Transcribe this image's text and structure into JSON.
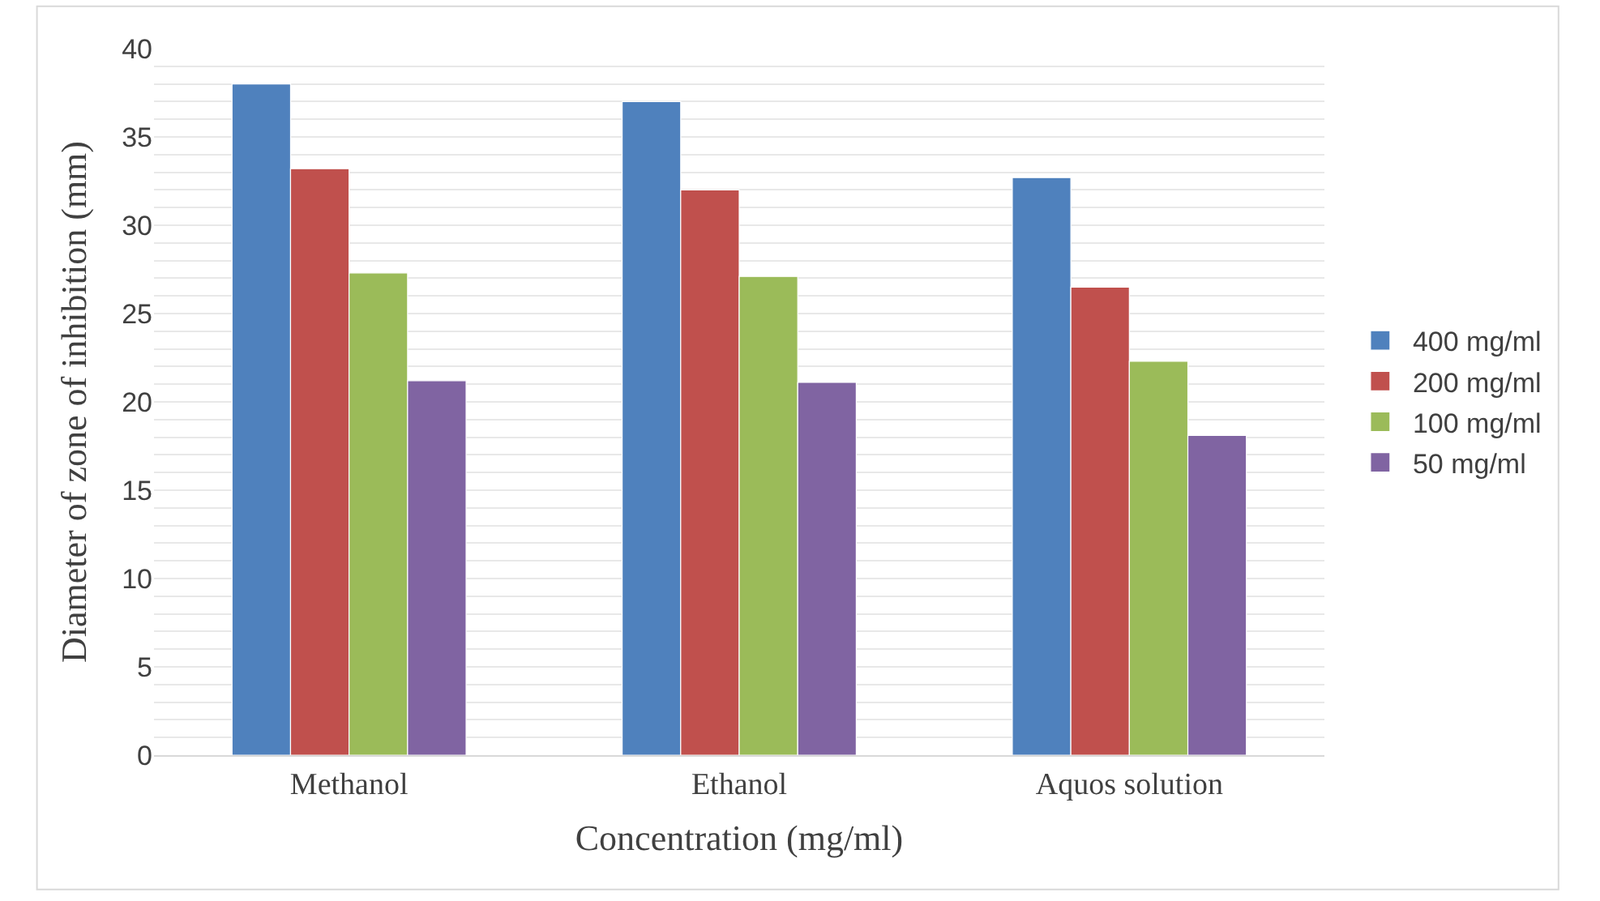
{
  "chart_data": {
    "type": "bar",
    "xlabel": "Concentration (mg/ml)",
    "ylabel": "Diameter of zone of inhibition (mm)",
    "categories": [
      "Methanol",
      "Ethanol",
      "Aquos solution"
    ],
    "series": [
      {
        "name": "400 mg/ml",
        "color": "#4f81bd",
        "values": [
          38,
          37,
          32.7
        ]
      },
      {
        "name": "200 mg/ml",
        "color": "#c0504d",
        "values": [
          33.2,
          32,
          26.5
        ]
      },
      {
        "name": "100 mg/ml",
        "color": "#9bbb59",
        "values": [
          27.3,
          27.1,
          22.3
        ]
      },
      {
        "name": "50 mg/ml",
        "color": "#8064a2",
        "values": [
          21.2,
          21.1,
          18.1
        ]
      }
    ],
    "ylim": [
      0,
      40
    ],
    "yticks": [
      0,
      {
        "value": 1,
        "label": null
      },
      {
        "value": 2,
        "label": null
      },
      {
        "value": 3,
        "label": null
      },
      {
        "value": 4,
        "label": null
      },
      5,
      {
        "value": 6,
        "label": null
      },
      {
        "value": 7,
        "label": null
      },
      {
        "value": 8,
        "label": null
      },
      {
        "value": 9,
        "label": null
      },
      10,
      {
        "value": 11,
        "label": null
      },
      {
        "value": 12,
        "label": null
      },
      {
        "value": 13,
        "label": null
      },
      {
        "value": 14,
        "label": null
      },
      15,
      {
        "value": 16,
        "label": null
      },
      {
        "value": 17,
        "label": null
      },
      {
        "value": 18,
        "label": null
      },
      {
        "value": 19,
        "label": null
      },
      20,
      {
        "value": 21,
        "label": null
      },
      {
        "value": 22,
        "label": null
      },
      {
        "value": 23,
        "label": null
      },
      {
        "value": 24,
        "label": null
      },
      25,
      {
        "value": 26,
        "label": null
      },
      {
        "value": 27,
        "label": null
      },
      {
        "value": 28,
        "label": null
      },
      {
        "value": 29,
        "label": null
      },
      30,
      {
        "value": 31,
        "label": null
      },
      {
        "value": 32,
        "label": null
      },
      {
        "value": 33,
        "label": null
      },
      {
        "value": 34,
        "label": null
      },
      35,
      {
        "value": 36,
        "label": null
      },
      {
        "value": 37,
        "label": null
      },
      {
        "value": 38,
        "label": null
      },
      {
        "value": 39,
        "label": null
      },
      40
    ],
    "grid": "y",
    "legend": "right"
  }
}
